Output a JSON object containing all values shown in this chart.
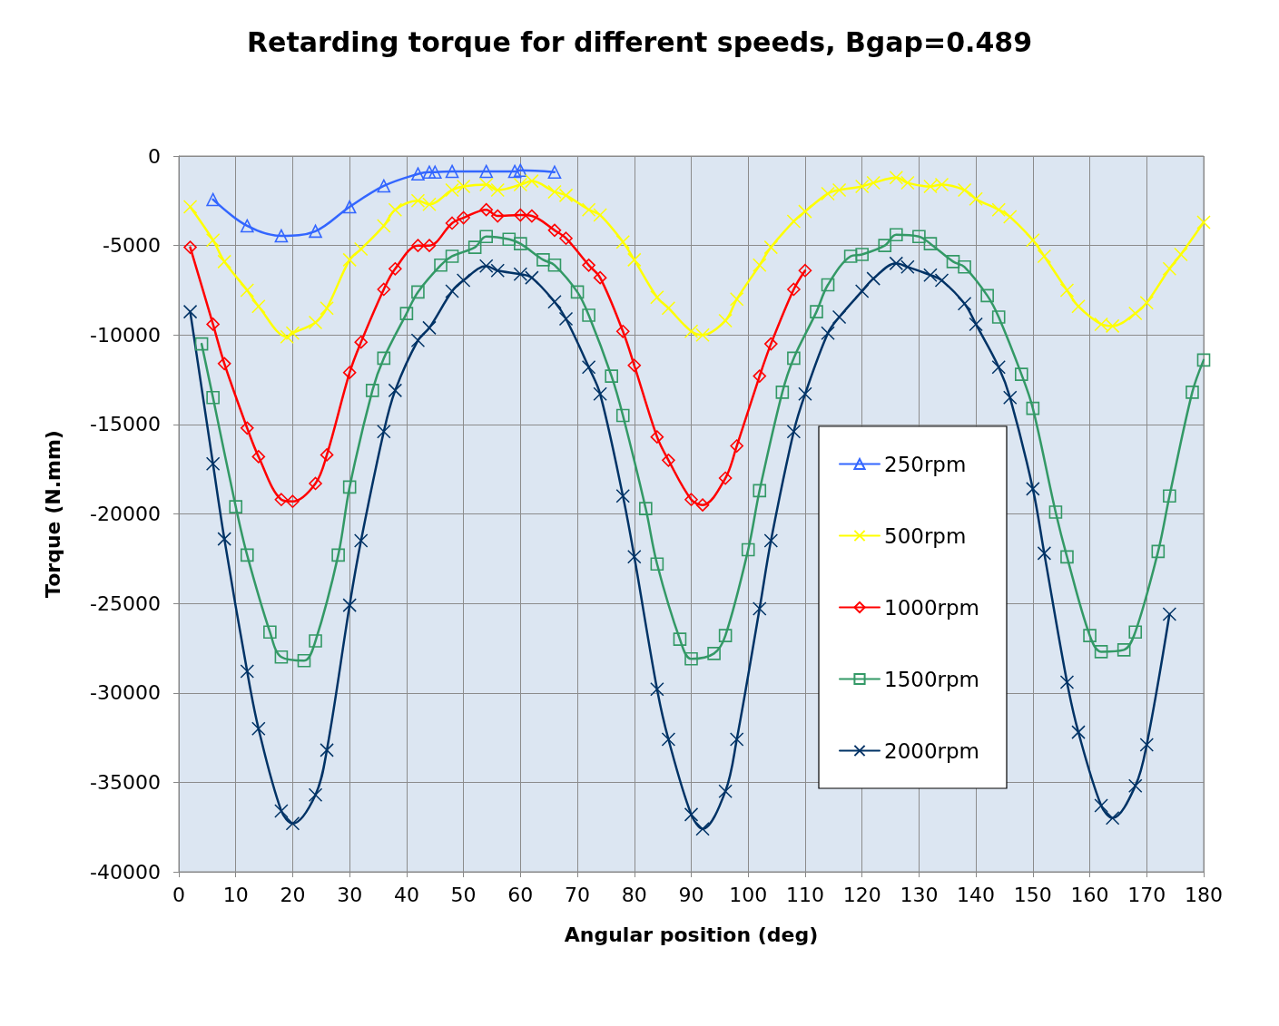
{
  "chart_data": {
    "type": "line",
    "title": "Retarding torque for different speeds, Bgap=0.489",
    "xlabel": "Angular position (deg)",
    "ylabel": "Torque (N.mm)",
    "xlim": [
      0,
      180
    ],
    "xticks": [
      0,
      10,
      20,
      30,
      40,
      50,
      60,
      70,
      80,
      90,
      100,
      110,
      120,
      130,
      140,
      150,
      160,
      170,
      180
    ],
    "ylim": [
      -40000,
      0
    ],
    "yticks": [
      -40000,
      -35000,
      -30000,
      -25000,
      -20000,
      -15000,
      -10000,
      -5000,
      0
    ],
    "grid": true,
    "legend": "right",
    "line_style": "solid",
    "series": [
      {
        "name": "250rpm",
        "color": "#3366ff",
        "marker": "triangle",
        "x": [
          6,
          12,
          18,
          24,
          30,
          36,
          42,
          44,
          45,
          48,
          54,
          59,
          60,
          66
        ],
        "values": [
          -2430,
          -3900,
          -4460,
          -4200,
          -2840,
          -1670,
          -1000,
          -900,
          -900,
          -860,
          -860,
          -860,
          -800,
          -900
        ]
      },
      {
        "name": "500rpm",
        "color": "#ffff00",
        "marker": "cross",
        "x": [
          2,
          6,
          8,
          12,
          14,
          19,
          20,
          24,
          26,
          30,
          32,
          36,
          38,
          42,
          44,
          48,
          50,
          54,
          56,
          60,
          62,
          66,
          68,
          72,
          74,
          78,
          80,
          84,
          86,
          90,
          92,
          96,
          98,
          102,
          104,
          108,
          110,
          114,
          116,
          120,
          122,
          126,
          128,
          132,
          134,
          138,
          140,
          144,
          146,
          150,
          152,
          156,
          158,
          162,
          164,
          168,
          170,
          174,
          176,
          180
        ],
        "values": [
          -2840,
          -4700,
          -5900,
          -7500,
          -8400,
          -10100,
          -9900,
          -9300,
          -8500,
          -5800,
          -5200,
          -3900,
          -3000,
          -2500,
          -2700,
          -1900,
          -1700,
          -1600,
          -1900,
          -1600,
          -1400,
          -2000,
          -2200,
          -3000,
          -3300,
          -4800,
          -5800,
          -7900,
          -8500,
          -9800,
          -10000,
          -9200,
          -8000,
          -6100,
          -5100,
          -3650,
          -3100,
          -2100,
          -1900,
          -1700,
          -1500,
          -1200,
          -1500,
          -1700,
          -1600,
          -1900,
          -2400,
          -3000,
          -3400,
          -4700,
          -5600,
          -7500,
          -8400,
          -9400,
          -9500,
          -8800,
          -8200,
          -6300,
          -5500,
          -3700
        ]
      },
      {
        "name": "1000rpm",
        "color": "#ff0000",
        "marker": "diamond",
        "x": [
          2,
          6,
          8,
          12,
          14,
          18,
          20,
          24,
          26,
          30,
          32,
          36,
          38,
          42,
          44,
          48,
          50,
          54,
          56,
          60,
          62,
          66,
          68,
          72,
          74,
          78,
          80,
          84,
          86,
          90,
          92,
          96,
          98,
          102,
          104,
          108,
          110
        ],
        "values": [
          -5100,
          -9400,
          -11600,
          -15200,
          -16800,
          -19200,
          -19300,
          -18300,
          -16700,
          -12100,
          -10400,
          -7450,
          -6300,
          -5000,
          -5000,
          -3750,
          -3450,
          -3000,
          -3350,
          -3300,
          -3350,
          -4150,
          -4600,
          -6100,
          -6800,
          -9800,
          -11700,
          -15700,
          -17000,
          -19200,
          -19500,
          -18000,
          -16200,
          -12300,
          -10500,
          -7450,
          -6400
        ]
      },
      {
        "name": "1500rpm",
        "color": "#339966",
        "marker": "square",
        "x": [
          4,
          6,
          10,
          12,
          16,
          18,
          22,
          24,
          28,
          30,
          34,
          36,
          40,
          42,
          46,
          48,
          52,
          54,
          58,
          60,
          64,
          66,
          70,
          72,
          76,
          78,
          82,
          84,
          88,
          90,
          94,
          96,
          100,
          102,
          106,
          108,
          112,
          114,
          118,
          120,
          124,
          126,
          130,
          132,
          136,
          138,
          142,
          144,
          148,
          150,
          154,
          156,
          160,
          162,
          166,
          168,
          172,
          174,
          178,
          180
        ],
        "values": [
          -10500,
          -13500,
          -19600,
          -22300,
          -26600,
          -28000,
          -28200,
          -27100,
          -22300,
          -18500,
          -13100,
          -11300,
          -8800,
          -7600,
          -6100,
          -5600,
          -5100,
          -4500,
          -4650,
          -4900,
          -5800,
          -6100,
          -7600,
          -8900,
          -12300,
          -14500,
          -19700,
          -22800,
          -27000,
          -28100,
          -27800,
          -26800,
          -22000,
          -18700,
          -13200,
          -11300,
          -8700,
          -7200,
          -5600,
          -5500,
          -5000,
          -4400,
          -4500,
          -4900,
          -5900,
          -6200,
          -7800,
          -9000,
          -12200,
          -14100,
          -19900,
          -22400,
          -26800,
          -27700,
          -27600,
          -26600,
          -22100,
          -19000,
          -13200,
          -11400
        ]
      },
      {
        "name": "2000rpm",
        "color": "#003366",
        "marker": "cross",
        "x": [
          2,
          6,
          8,
          12,
          14,
          18,
          20,
          24,
          26,
          30,
          32,
          36,
          38,
          42,
          44,
          48,
          50,
          54,
          56,
          60,
          62,
          66,
          68,
          72,
          74,
          78,
          80,
          84,
          86,
          90,
          92,
          96,
          98,
          102,
          104,
          108,
          110,
          114,
          116,
          120,
          122,
          126,
          128,
          132,
          134,
          138,
          140,
          144,
          146,
          150,
          152,
          156,
          158,
          162,
          164,
          168,
          170,
          174
        ],
        "values": [
          -8700,
          -17200,
          -21400,
          -28800,
          -32000,
          -36600,
          -37300,
          -35700,
          -33200,
          -25100,
          -21500,
          -15400,
          -13100,
          -10300,
          -9600,
          -7550,
          -6950,
          -6150,
          -6400,
          -6600,
          -6800,
          -8150,
          -9100,
          -11800,
          -13300,
          -19000,
          -22400,
          -29800,
          -32600,
          -36800,
          -37600,
          -35500,
          -32600,
          -25300,
          -21500,
          -15400,
          -13300,
          -9900,
          -9000,
          -7550,
          -6850,
          -6000,
          -6200,
          -6650,
          -6950,
          -8250,
          -9400,
          -11800,
          -13500,
          -18600,
          -22200,
          -29400,
          -32200,
          -36300,
          -37000,
          -35200,
          -32900,
          -25600
        ]
      }
    ]
  }
}
